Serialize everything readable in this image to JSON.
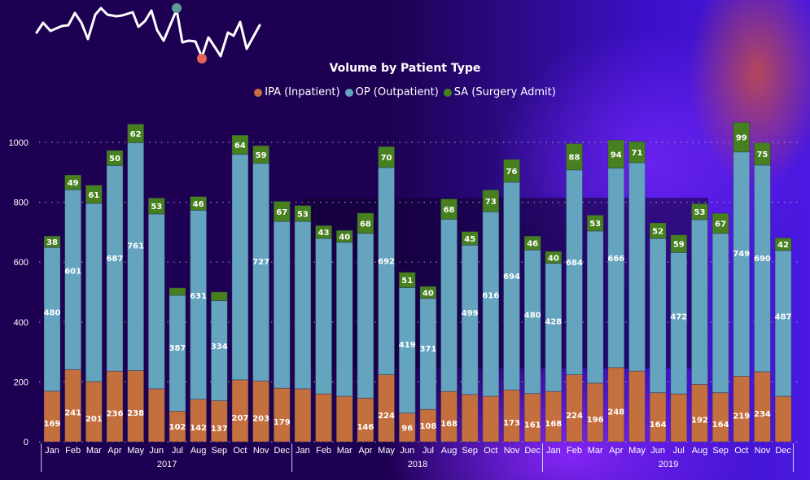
{
  "chart_data": {
    "type": "bar",
    "stacked": true,
    "title": "Volume by Patient Type",
    "xlabel": "",
    "ylabel": "",
    "ylim": [
      0,
      1050
    ],
    "yticks": [
      "0",
      "200",
      "400",
      "600",
      "800",
      "1000"
    ],
    "grid": true,
    "legend_position": "top-center",
    "years": [
      "2017",
      "2018",
      "2019"
    ],
    "categories": [
      "Jan",
      "Feb",
      "Mar",
      "Apr",
      "May",
      "Jun",
      "Jul",
      "Aug",
      "Sep",
      "Oct",
      "Nov",
      "Dec",
      "Jan",
      "Feb",
      "Mar",
      "Apr",
      "May",
      "Jun",
      "Jul",
      "Aug",
      "Sep",
      "Oct",
      "Nov",
      "Dec",
      "Jan",
      "Feb",
      "Mar",
      "Apr",
      "May",
      "Jun",
      "Jul",
      "Aug",
      "Sep",
      "Oct",
      "Nov",
      "Dec"
    ],
    "series": [
      {
        "name": "IPA (Inpatient)",
        "color": "#c46f3e",
        "values": [
          169,
          241,
          201,
          236,
          238,
          177,
          102,
          142,
          137,
          207,
          203,
          179,
          177,
          160,
          152,
          146,
          224,
          96,
          108,
          168,
          158,
          152,
          173,
          161,
          168,
          224,
          196,
          248,
          236,
          164,
          160,
          192,
          164,
          219,
          234,
          152
        ],
        "labeled": [
          1,
          1,
          1,
          1,
          1,
          0,
          1,
          1,
          1,
          1,
          1,
          1,
          0,
          0,
          0,
          1,
          1,
          1,
          1,
          1,
          0,
          0,
          1,
          1,
          1,
          1,
          1,
          1,
          0,
          1,
          0,
          1,
          1,
          1,
          1,
          0
        ]
      },
      {
        "name": "OP (Outpatient)",
        "color": "#65a4be",
        "values": [
          480,
          601,
          595,
          687,
          761,
          584,
          387,
          631,
          334,
          753,
          727,
          557,
          559,
          519,
          514,
          550,
          692,
          419,
          371,
          575,
          499,
          616,
          694,
          480,
          428,
          684,
          508,
          666,
          696,
          515,
          472,
          550,
          532,
          749,
          690,
          487
        ],
        "labeled": [
          1,
          1,
          0,
          1,
          1,
          0,
          1,
          1,
          1,
          0,
          1,
          0,
          0,
          0,
          0,
          0,
          1,
          1,
          1,
          0,
          1,
          1,
          1,
          1,
          1,
          1,
          0,
          1,
          0,
          0,
          1,
          0,
          0,
          1,
          1,
          1
        ]
      },
      {
        "name": "SA (Surgery Admit)",
        "color": "#47801f",
        "values": [
          38,
          49,
          61,
          50,
          62,
          53,
          25,
          46,
          29,
          64,
          59,
          67,
          53,
          43,
          40,
          68,
          70,
          51,
          40,
          68,
          45,
          73,
          76,
          46,
          40,
          88,
          53,
          94,
          71,
          52,
          59,
          53,
          67,
          99,
          75,
          42
        ],
        "labeled": [
          1,
          1,
          1,
          1,
          1,
          1,
          0,
          1,
          0,
          1,
          1,
          1,
          1,
          1,
          1,
          1,
          1,
          1,
          1,
          1,
          1,
          1,
          1,
          1,
          1,
          1,
          1,
          1,
          1,
          1,
          1,
          1,
          1,
          1,
          1,
          1
        ]
      }
    ]
  },
  "colors": {
    "background": "#1e0052",
    "grid": "#9a8fc0",
    "text": "#ffffff"
  }
}
